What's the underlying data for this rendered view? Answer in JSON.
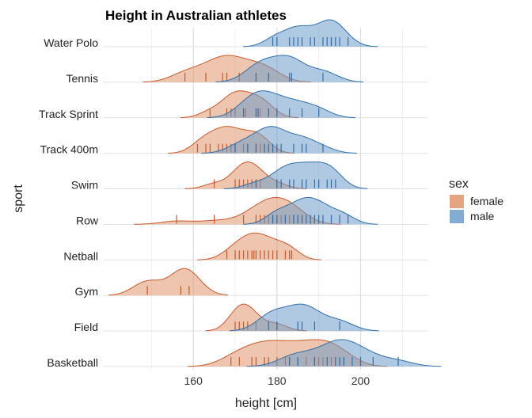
{
  "chart_data": {
    "type": "ridgeline",
    "title": "Height in Australian athletes",
    "xlabel": "height [cm]",
    "ylabel": "sport",
    "xlim": [
      138,
      216
    ],
    "xticks": [
      160,
      180,
      200
    ],
    "legend": {
      "title": "sex",
      "position": "right",
      "entries": [
        {
          "name": "female",
          "fill": "#e0956b",
          "line": "#c8582a"
        },
        {
          "name": "male",
          "fill": "#6d9dcb",
          "line": "#2f6eaa"
        }
      ]
    },
    "sports": [
      {
        "name": "Water Polo",
        "series": [
          {
            "sex": "male",
            "heights": [
              179,
              180,
              183,
              184,
              185,
              186,
              188,
              189,
              191,
              192,
              193,
              193,
              194,
              195,
              197
            ]
          }
        ]
      },
      {
        "name": "Tennis",
        "series": [
          {
            "sex": "female",
            "heights": [
              158,
              163,
              167,
              168,
              171,
              175,
              178
            ]
          },
          {
            "sex": "male",
            "heights": [
              175,
              178,
              183,
              183.5,
              191
            ]
          }
        ]
      },
      {
        "name": "Track Sprint",
        "series": [
          {
            "sex": "female",
            "heights": [
              164,
              168,
              169,
              170,
              172,
              172.5,
              175,
              176,
              178
            ]
          },
          {
            "sex": "male",
            "heights": [
              172,
              175,
              175.5,
              178,
              180,
              183,
              186,
              190
            ]
          }
        ]
      },
      {
        "name": "Track 400m",
        "series": [
          {
            "sex": "female",
            "heights": [
              161,
              163,
              164,
              166,
              167,
              168,
              169,
              170,
              172,
              173,
              175,
              176,
              177
            ]
          },
          {
            "sex": "male",
            "heights": [
              170,
              173,
              175,
              177,
              178,
              179,
              180,
              181,
              184,
              186,
              187,
              191
            ]
          }
        ]
      },
      {
        "name": "Swim",
        "series": [
          {
            "sex": "female",
            "heights": [
              165,
              170,
              171,
              172,
              173,
              174,
              175,
              176,
              180
            ]
          },
          {
            "sex": "male",
            "heights": [
              175,
              180,
              181,
              183,
              184,
              186,
              187,
              189,
              190,
              192,
              193,
              194
            ]
          }
        ]
      },
      {
        "name": "Row",
        "series": [
          {
            "sex": "female",
            "heights": [
              156,
              165,
              172,
              175,
              176,
              177,
              178,
              179,
              180,
              181,
              182,
              183,
              184,
              185
            ]
          },
          {
            "sex": "male",
            "heights": [
              179,
              180,
              182,
              184,
              185,
              186,
              187,
              188,
              189,
              190,
              191,
              193,
              195,
              197
            ]
          }
        ]
      },
      {
        "name": "Netball",
        "series": [
          {
            "sex": "female",
            "heights": [
              168,
              170,
              171,
              172,
              173,
              174,
              174.5,
              175,
              176,
              177,
              178,
              179,
              180,
              182,
              183,
              183.5
            ]
          }
        ]
      },
      {
        "name": "Gym",
        "series": [
          {
            "sex": "female",
            "heights": [
              149,
              157,
              159
            ]
          }
        ]
      },
      {
        "name": "Field",
        "series": [
          {
            "sex": "female",
            "heights": [
              170,
              171,
              172,
              173,
              175,
              180
            ]
          },
          {
            "sex": "male",
            "heights": [
              178,
              180,
              185,
              186,
              189,
              195
            ]
          }
        ]
      },
      {
        "name": "Basketball",
        "series": [
          {
            "sex": "female",
            "heights": [
              169,
              171,
              174,
              175,
              177,
              178,
              180,
              182,
              183,
              185,
              187,
              189,
              190,
              191,
              193,
              195,
              196
            ]
          },
          {
            "sex": "male",
            "heights": [
              183,
              185,
              189,
              192,
              194,
              195,
              196,
              198,
              200,
              203,
              209
            ]
          }
        ]
      }
    ]
  }
}
